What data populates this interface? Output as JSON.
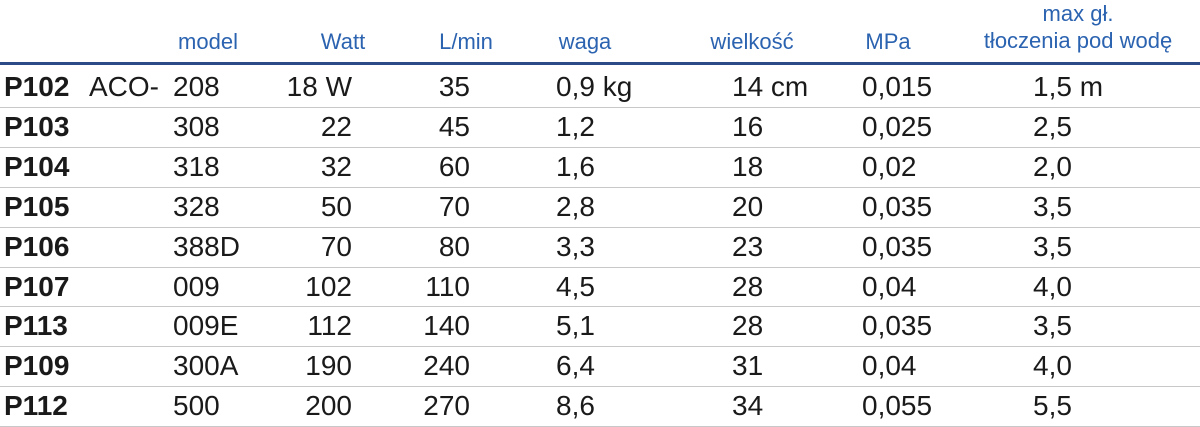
{
  "table": {
    "columns": [
      "model",
      "Watt",
      "L/min",
      "waga",
      "wielkość",
      "MPa",
      [
        "max gł.",
        "tłoczenia pod wodę"
      ]
    ],
    "model_prefix": "ACO-",
    "rows": [
      [
        "P102",
        "208",
        "18 W",
        "35",
        "0,9 kg",
        "14 cm",
        "0,015",
        "1,5 m"
      ],
      [
        "P103",
        "308",
        "22",
        "45",
        "1,2",
        "16",
        "0,025",
        "2,5"
      ],
      [
        "P104",
        "318",
        "32",
        "60",
        "1,6",
        "18",
        "0,02",
        "2,0"
      ],
      [
        "P105",
        "328",
        "50",
        "70",
        "2,8",
        "20",
        "0,035",
        "3,5"
      ],
      [
        "P106",
        "388D",
        "70",
        "80",
        "3,3",
        "23",
        "0,035",
        "3,5"
      ],
      [
        "P107",
        "009",
        "102",
        "110",
        "4,5",
        "28",
        "0,04",
        "4,0"
      ],
      [
        "P113",
        "009E",
        "112",
        "140",
        "5,1",
        "28",
        "0,035",
        "3,5"
      ],
      [
        "P109",
        "300A",
        "190",
        "240",
        "6,4",
        "31",
        "0,04",
        "4,0"
      ],
      [
        "P112",
        "500",
        "200",
        "270",
        "8,6",
        "34",
        "0,055",
        "5,5"
      ]
    ]
  }
}
